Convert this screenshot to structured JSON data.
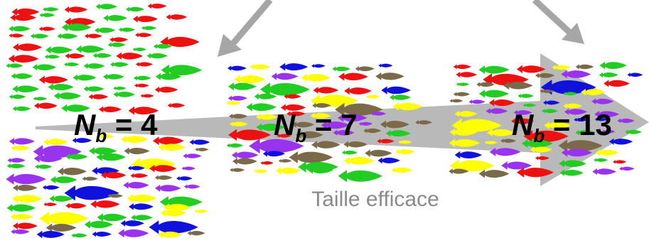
{
  "colors": {
    "arrow": "#b3b3b3",
    "pointer_arrow": "#a6a6a6",
    "fish_green": "#22cc22",
    "fish_red": "#ee1111",
    "fish_purple": "#9933ee",
    "fish_blue": "#1111dd",
    "fish_yellow": "#ffff00",
    "fish_brown": "#7a6a4a",
    "label": "#000000",
    "caption": "#8a8a8a"
  },
  "labels": [
    {
      "symbol": "N",
      "subscript": "b",
      "operator": " = ",
      "value": "4"
    },
    {
      "symbol": "N",
      "subscript": "b",
      "operator": " = ",
      "value": "7"
    },
    {
      "symbol": "N",
      "subscript": "b",
      "operator": " = ",
      "value": "13"
    }
  ],
  "caption": "Taille efficace",
  "groups": [
    {
      "name": "top-left-school",
      "palette": [
        "fish_green",
        "fish_red"
      ]
    },
    {
      "name": "bottom-left-school",
      "palette": [
        "fish_purple",
        "fish_green",
        "fish_brown",
        "fish_red",
        "fish_blue",
        "fish_yellow"
      ]
    },
    {
      "name": "middle-school",
      "palette": [
        "fish_purple",
        "fish_green",
        "fish_red",
        "fish_brown",
        "fish_blue",
        "fish_yellow"
      ]
    },
    {
      "name": "right-school",
      "palette": [
        "fish_purple",
        "fish_green",
        "fish_red",
        "fish_brown",
        "fish_blue",
        "fish_yellow"
      ]
    }
  ]
}
